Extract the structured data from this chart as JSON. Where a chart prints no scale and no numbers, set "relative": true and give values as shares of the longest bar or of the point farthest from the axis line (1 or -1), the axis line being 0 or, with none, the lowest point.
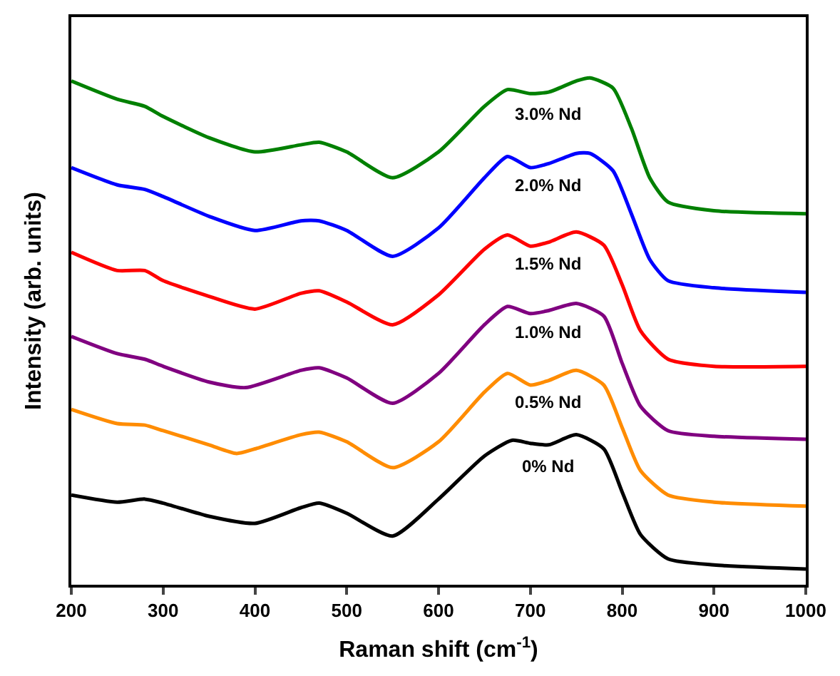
{
  "chart_data": {
    "type": "line",
    "relative": true,
    "xlabel": "Raman shift (cm$^{-1}$)",
    "ylabel": "Intensity (arb. units)",
    "xlim": [
      200,
      1000
    ],
    "xticks": [
      200,
      300,
      400,
      500,
      600,
      700,
      800,
      900,
      1000
    ],
    "legend": false,
    "tick_labels": "x",
    "marker": "none",
    "line_style": "solid",
    "series": [
      {
        "name": "0% Nd",
        "color": "#000000",
        "x": [
          200,
          250,
          280,
          300,
          350,
          400,
          450,
          470,
          500,
          550,
          600,
          650,
          680,
          700,
          720,
          750,
          780,
          800,
          820,
          850,
          900,
          1000
        ],
        "values": [
          0.177,
          0.163,
          0.169,
          0.161,
          0.135,
          0.121,
          0.152,
          0.161,
          0.141,
          0.096,
          0.169,
          0.254,
          0.285,
          0.279,
          0.276,
          0.296,
          0.268,
          0.183,
          0.099,
          0.051,
          0.039,
          0.031
        ]
      },
      {
        "name": "0.5% Nd",
        "color": "#ff8c00",
        "x": [
          200,
          250,
          280,
          300,
          350,
          380,
          400,
          450,
          470,
          500,
          550,
          600,
          650,
          675,
          700,
          720,
          750,
          780,
          800,
          820,
          850,
          900,
          1000
        ],
        "values": [
          0.346,
          0.318,
          0.315,
          0.304,
          0.276,
          0.259,
          0.268,
          0.296,
          0.301,
          0.282,
          0.231,
          0.282,
          0.38,
          0.417,
          0.394,
          0.403,
          0.423,
          0.394,
          0.31,
          0.225,
          0.177,
          0.163,
          0.155
        ]
      },
      {
        "name": "1.0% Nd",
        "color": "#800080",
        "x": [
          200,
          250,
          280,
          300,
          350,
          390,
          450,
          470,
          500,
          550,
          600,
          650,
          675,
          700,
          720,
          750,
          780,
          800,
          820,
          850,
          900,
          1000
        ],
        "values": [
          0.49,
          0.456,
          0.445,
          0.431,
          0.4,
          0.389,
          0.423,
          0.428,
          0.408,
          0.358,
          0.417,
          0.513,
          0.549,
          0.535,
          0.541,
          0.555,
          0.53,
          0.437,
          0.352,
          0.304,
          0.293,
          0.287
        ]
      },
      {
        "name": "1.5% Nd",
        "color": "#ff0000",
        "x": [
          200,
          250,
          280,
          300,
          350,
          400,
          450,
          470,
          500,
          550,
          600,
          650,
          675,
          700,
          720,
          750,
          780,
          800,
          820,
          850,
          900,
          1000
        ],
        "values": [
          0.656,
          0.62,
          0.62,
          0.6,
          0.569,
          0.544,
          0.575,
          0.58,
          0.558,
          0.513,
          0.572,
          0.662,
          0.69,
          0.668,
          0.676,
          0.696,
          0.67,
          0.592,
          0.501,
          0.445,
          0.431,
          0.431
        ]
      },
      {
        "name": "2.0% Nd",
        "color": "#0000ff",
        "x": [
          200,
          250,
          280,
          300,
          350,
          400,
          450,
          470,
          500,
          550,
          600,
          650,
          675,
          700,
          720,
          750,
          765,
          790,
          810,
          830,
          850,
          900,
          1000
        ],
        "values": [
          0.823,
          0.789,
          0.78,
          0.766,
          0.727,
          0.699,
          0.718,
          0.718,
          0.699,
          0.648,
          0.704,
          0.803,
          0.845,
          0.823,
          0.831,
          0.851,
          0.851,
          0.817,
          0.732,
          0.642,
          0.6,
          0.586,
          0.577
        ]
      },
      {
        "name": "3.0% Nd",
        "color": "#008000",
        "x": [
          200,
          250,
          280,
          300,
          350,
          400,
          450,
          470,
          500,
          550,
          600,
          650,
          675,
          700,
          720,
          750,
          765,
          790,
          810,
          830,
          850,
          900,
          1000
        ],
        "values": [
          0.994,
          0.958,
          0.944,
          0.924,
          0.882,
          0.854,
          0.868,
          0.873,
          0.854,
          0.803,
          0.854,
          0.944,
          0.977,
          0.969,
          0.972,
          0.994,
          1,
          0.98,
          0.901,
          0.803,
          0.755,
          0.738,
          0.732
        ]
      }
    ]
  }
}
